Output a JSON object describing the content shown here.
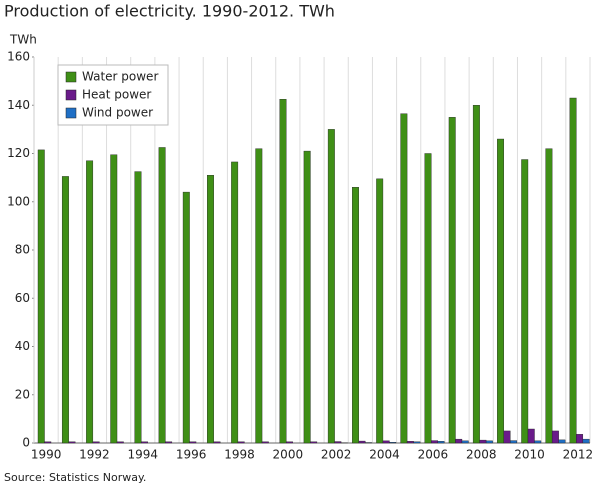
{
  "chart_data": {
    "type": "bar",
    "title": "Production of electricity. 1990-2012. TWh",
    "y_label": "TWh",
    "source": "Source: Statistics Norway.",
    "categories": [
      "1990",
      null,
      "1992",
      null,
      "1994",
      null,
      "1996",
      null,
      "1998",
      null,
      "2000",
      null,
      "2002",
      null,
      "2004",
      null,
      "2006",
      null,
      "2008",
      null,
      "2010",
      null,
      "2012"
    ],
    "series": [
      {
        "name": "Water power",
        "color": "#3f8f16",
        "values": [
          121.5,
          110.5,
          117,
          119.5,
          112.5,
          122.5,
          104,
          111,
          116.5,
          122,
          142.5,
          121,
          130,
          106,
          109.5,
          136.5,
          120,
          135,
          140,
          126,
          117.5,
          122,
          143
        ]
      },
      {
        "name": "Heat power",
        "color": "#6a1b8a",
        "values": [
          0.5,
          0.5,
          0.5,
          0.5,
          0.5,
          0.5,
          0.5,
          0.5,
          0.5,
          0.5,
          0.5,
          0.5,
          0.6,
          0.8,
          0.9,
          0.7,
          1.0,
          1.6,
          1.2,
          5,
          5.8,
          5,
          3.6
        ]
      },
      {
        "name": "Wind power",
        "color": "#1f6fc5",
        "values": [
          0,
          0,
          0,
          0,
          0,
          0,
          0,
          0,
          0,
          0,
          0,
          0,
          0.1,
          0.2,
          0.3,
          0.5,
          0.7,
          0.9,
          0.9,
          1.0,
          0.9,
          1.3,
          1.6
        ]
      }
    ],
    "ylim": [
      0,
      160
    ],
    "yticks": [
      0,
      20,
      40,
      60,
      80,
      100,
      120,
      140,
      160
    ],
    "grid": "x",
    "legend": "upper-left"
  }
}
